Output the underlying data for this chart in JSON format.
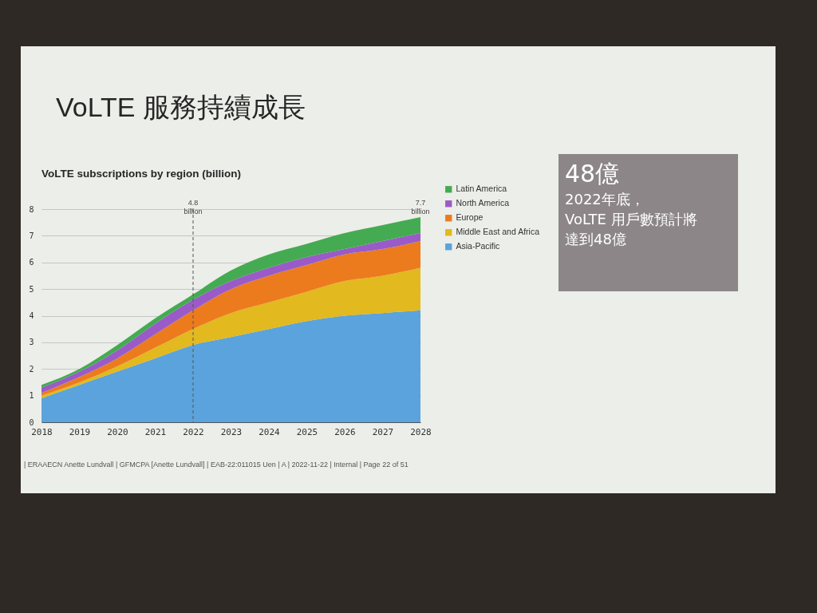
{
  "chart_data": [
    {
      "type": "area",
      "title": "VoLTE 服務持續成長",
      "subtitle": "VoLTE subscriptions by region (billion)",
      "x": [
        2018,
        2019,
        2020,
        2021,
        2022,
        2023,
        2024,
        2025,
        2026,
        2027,
        2028
      ],
      "xlim": [
        2018,
        2028
      ],
      "xticks": [
        2018,
        2019,
        2020,
        2021,
        2022,
        2023,
        2024,
        2025,
        2026,
        2027,
        2028
      ],
      "ylim": [
        0,
        8
      ],
      "yticks": [
        0,
        1,
        2,
        3,
        4,
        5,
        6,
        7,
        8
      ],
      "grid": "y",
      "stacked": true,
      "legend": "top right",
      "series": [
        {
          "name": "Asia-Pacific",
          "color": "#5ba3dc",
          "values": [
            0.9,
            1.4,
            1.9,
            2.4,
            2.9,
            3.2,
            3.5,
            3.8,
            4.0,
            4.1,
            4.2
          ]
        },
        {
          "name": "Middle East and Africa",
          "color": "#e2b91e",
          "values": [
            0.1,
            0.1,
            0.2,
            0.4,
            0.6,
            0.9,
            1.0,
            1.1,
            1.3,
            1.4,
            1.6
          ]
        },
        {
          "name": "Europe",
          "color": "#ec7b1e",
          "values": [
            0.1,
            0.2,
            0.3,
            0.5,
            0.7,
            0.9,
            1.0,
            1.0,
            1.0,
            1.0,
            1.0
          ]
        },
        {
          "name": "North America",
          "color": "#9a5bc8",
          "values": [
            0.2,
            0.2,
            0.3,
            0.4,
            0.4,
            0.3,
            0.3,
            0.3,
            0.2,
            0.3,
            0.3
          ]
        },
        {
          "name": "Latin America",
          "color": "#45ab52",
          "values": [
            0.1,
            0.1,
            0.2,
            0.2,
            0.2,
            0.4,
            0.5,
            0.5,
            0.6,
            0.6,
            0.6
          ]
        }
      ],
      "ref_lines": [
        {
          "axis": "x",
          "value": 2022,
          "label": "4.8 billion",
          "line_style": "dashed",
          "color": "#555555"
        }
      ],
      "annotations": [
        {
          "text": "7.7 billion",
          "x": 2028,
          "y": 7.7
        },
        "| ERAAECN Anette Lundvall | GFMCPA [Anette Lundvall] | EAB-22:011015 Uen | A | 2022-11-22 | Internal | Page 22 of 51"
      ]
    },
    {
      "type": "other",
      "title": "48億",
      "annotations": [
        "2022年底，",
        "VoLTE 用戶數預計將",
        "達到48億"
      ]
    }
  ]
}
